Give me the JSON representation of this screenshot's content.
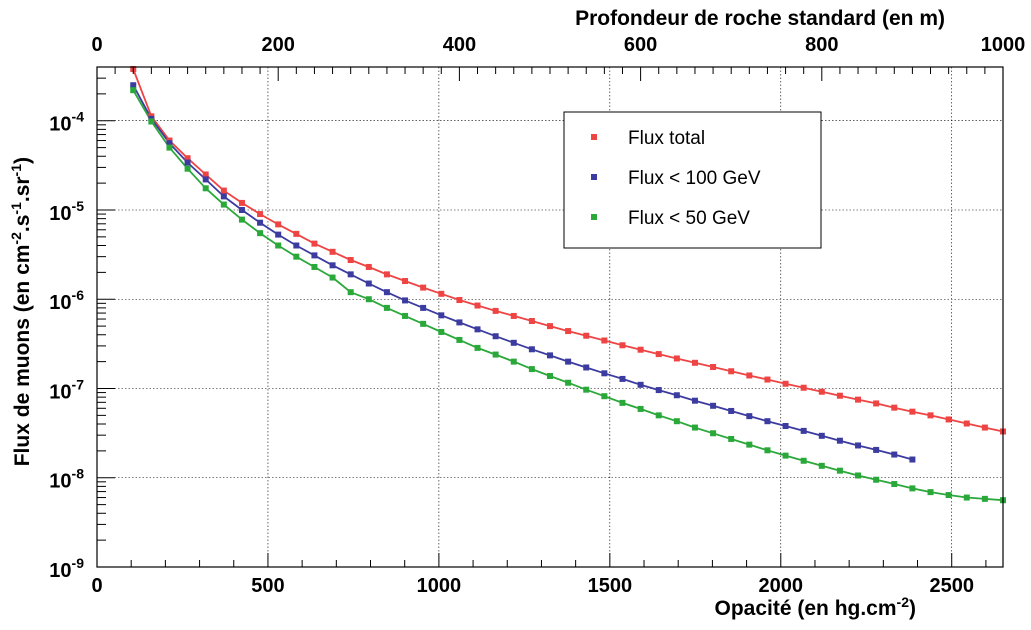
{
  "chart_data": {
    "type": "scatter",
    "xlabel": "Opacité (en hg.cm",
    "xlabel_sup": "-2",
    "xlabel_end": ")",
    "ylabel": "Flux de muons (en cm",
    "ylabel_sup1": "-2",
    "ylabel_mid1": ".s",
    "ylabel_sup2": "-1",
    "ylabel_mid2": ".sr",
    "ylabel_sup3": "-1",
    "ylabel_end": ")",
    "top_axis_label": "Profondeur de roche standard (en m)",
    "xlim": [
      0,
      2650
    ],
    "ylim": [
      1e-09,
      0.0004
    ],
    "y_scale": "log",
    "top_xlim": [
      0,
      1000
    ],
    "x_ticks": [
      0,
      500,
      1000,
      1500,
      2000,
      2500
    ],
    "x_tick_labels": [
      "0",
      "500",
      "1000",
      "1500",
      "2000",
      "2500"
    ],
    "top_x_ticks": [
      0,
      200,
      400,
      600,
      800,
      1000
    ],
    "top_x_tick_labels": [
      "0",
      "200",
      "400",
      "600",
      "800",
      "1000"
    ],
    "y_ticks": [
      1e-09,
      1e-08,
      1e-07,
      1e-06,
      1e-05,
      0.0001
    ],
    "y_tick_labels": [
      {
        "base": "10",
        "exp": "-9"
      },
      {
        "base": "10",
        "exp": "-8"
      },
      {
        "base": "10",
        "exp": "-7"
      },
      {
        "base": "10",
        "exp": "-6"
      },
      {
        "base": "10",
        "exp": "-5"
      },
      {
        "base": "10",
        "exp": "-4"
      }
    ],
    "grid": true,
    "legend_position": "upper-right",
    "series": [
      {
        "name": "Flux total",
        "color": "#ee4444",
        "x": [
          106,
          159,
          212,
          265,
          318,
          371,
          424,
          477,
          530,
          583,
          636,
          689,
          742,
          795,
          848,
          901,
          954,
          1007,
          1060,
          1113,
          1166,
          1219,
          1272,
          1325,
          1378,
          1431,
          1484,
          1537,
          1590,
          1643,
          1696,
          1749,
          1802,
          1855,
          1908,
          1961,
          2014,
          2067,
          2120,
          2173,
          2226,
          2279,
          2332,
          2385,
          2438,
          2491,
          2544,
          2597,
          2650
        ],
        "y": [
          0.00038,
          0.000112,
          6e-05,
          3.8e-05,
          2.5e-05,
          1.65e-05,
          1.2e-05,
          9e-06,
          6.9e-06,
          5.4e-06,
          4.2e-06,
          3.4e-06,
          2.75e-06,
          2.3e-06,
          1.9e-06,
          1.6e-06,
          1.35e-06,
          1.15e-06,
          9.8e-07,
          8.5e-07,
          7.4e-07,
          6.5e-07,
          5.7e-07,
          5e-07,
          4.4e-07,
          3.9e-07,
          3.45e-07,
          3.05e-07,
          2.72e-07,
          2.43e-07,
          2.17e-07,
          1.94e-07,
          1.74e-07,
          1.56e-07,
          1.4e-07,
          1.26e-07,
          1.13e-07,
          1.02e-07,
          9.2e-08,
          8.3e-08,
          7.5e-08,
          6.8e-08,
          6.1e-08,
          5.5e-08,
          5e-08,
          4.5e-08,
          4.05e-08,
          3.65e-08,
          3.3e-08
        ]
      },
      {
        "name": "Flux < 100 GeV",
        "color": "#3c3ca0",
        "x": [
          106,
          159,
          212,
          265,
          318,
          371,
          424,
          477,
          530,
          583,
          636,
          689,
          742,
          795,
          848,
          901,
          954,
          1007,
          1060,
          1113,
          1166,
          1219,
          1272,
          1325,
          1378,
          1431,
          1484,
          1537,
          1590,
          1643,
          1696,
          1749,
          1802,
          1855,
          1908,
          1961,
          2014,
          2067,
          2120,
          2173,
          2226,
          2279,
          2332,
          2385
        ],
        "y": [
          0.00025,
          0.000105,
          5.6e-05,
          3.4e-05,
          2.2e-05,
          1.42e-05,
          1e-05,
          7.2e-06,
          5.3e-06,
          4e-06,
          3.1e-06,
          2.4e-06,
          1.9e-06,
          1.5e-06,
          1.2e-06,
          9.7e-07,
          8e-07,
          6.6e-07,
          5.5e-07,
          4.6e-07,
          3.85e-07,
          3.25e-07,
          2.75e-07,
          2.35e-07,
          2e-07,
          1.72e-07,
          1.48e-07,
          1.28e-07,
          1.1e-07,
          9.6e-08,
          8.4e-08,
          7.3e-08,
          6.4e-08,
          5.6e-08,
          4.9e-08,
          4.3e-08,
          3.8e-08,
          3.35e-08,
          2.95e-08,
          2.6e-08,
          2.3e-08,
          2.05e-08,
          1.82e-08,
          1.6e-08
        ]
      },
      {
        "name": "Flux < 50 GeV",
        "color": "#2aa83a",
        "x": [
          106,
          159,
          212,
          265,
          318,
          371,
          424,
          477,
          530,
          583,
          636,
          689,
          742,
          795,
          848,
          901,
          954,
          1007,
          1060,
          1113,
          1166,
          1219,
          1272,
          1325,
          1378,
          1431,
          1484,
          1537,
          1590,
          1643,
          1696,
          1749,
          1802,
          1855,
          1908,
          1961,
          2014,
          2067,
          2120,
          2173,
          2226,
          2279,
          2332,
          2385,
          2438,
          2491,
          2544,
          2597,
          2650
        ],
        "y": [
          0.00022,
          9.8e-05,
          5e-05,
          2.9e-05,
          1.75e-05,
          1.15e-05,
          7.8e-06,
          5.5e-06,
          4e-06,
          3e-06,
          2.3e-06,
          1.75e-06,
          1.2e-06,
          1e-06,
          8e-07,
          6.5e-07,
          5.3e-07,
          4.3e-07,
          3.5e-07,
          2.85e-07,
          2.4e-07,
          2e-07,
          1.65e-07,
          1.38e-07,
          1.16e-07,
          9.7e-08,
          8.2e-08,
          6.9e-08,
          5.9e-08,
          5e-08,
          4.3e-08,
          3.65e-08,
          3.15e-08,
          2.72e-08,
          2.35e-08,
          2.03e-08,
          1.77e-08,
          1.55e-08,
          1.36e-08,
          1.2e-08,
          1.06e-08,
          9.5e-09,
          8.5e-09,
          7.6e-09,
          6.9e-09,
          6.4e-09,
          6e-09,
          5.8e-09,
          5.6e-09
        ]
      }
    ]
  }
}
